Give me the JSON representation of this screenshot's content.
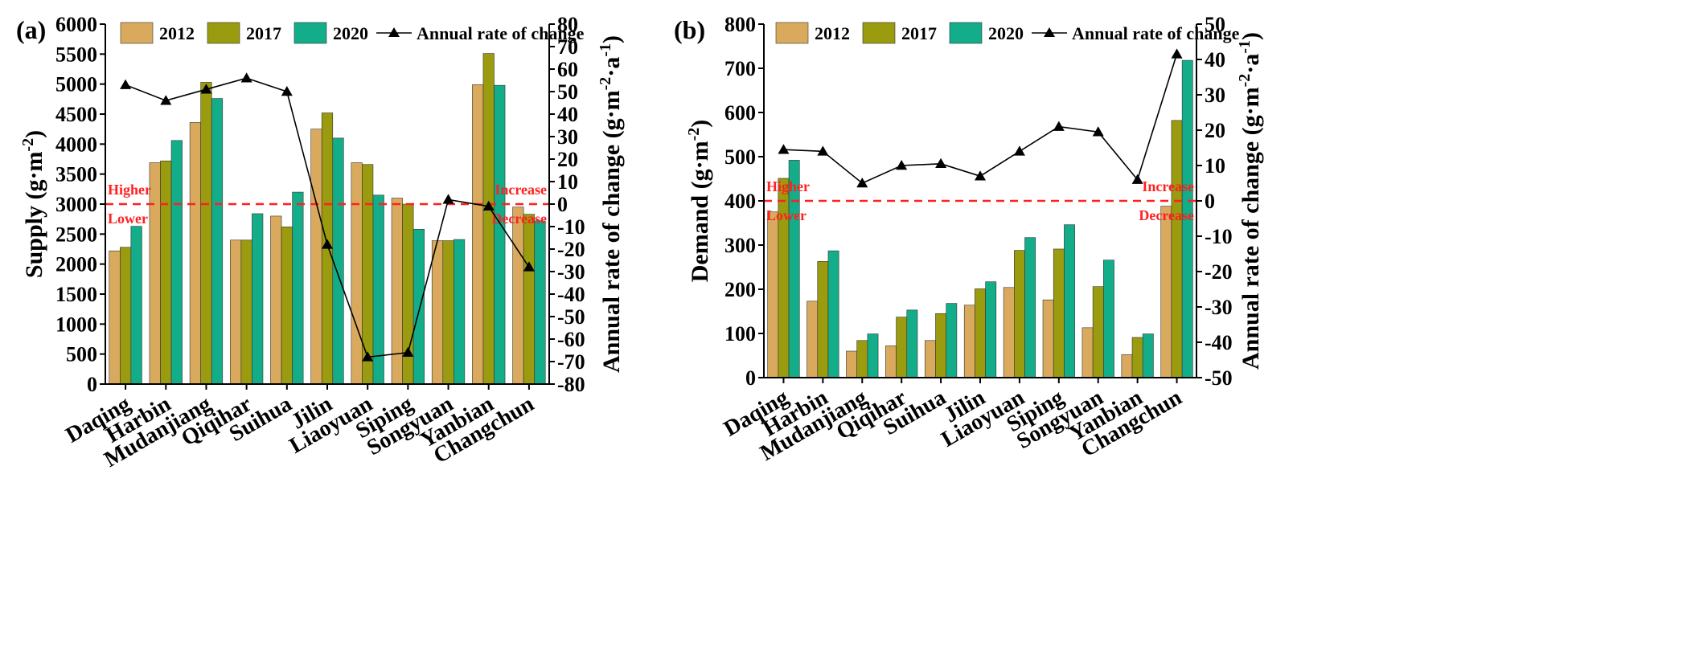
{
  "colors": {
    "c2012": "#d9aa5e",
    "c2017": "#9a9b0e",
    "c2020": "#13ad8a",
    "rate": "#000000",
    "threshold": "#ff2020"
  },
  "legend": {
    "y2012": "2012",
    "y2017": "2017",
    "y2020": "2020",
    "rate": "Annual rate of change"
  },
  "chart_data": [
    {
      "type": "bar",
      "panel_label": "(a)",
      "ylabel": "Supply (g·m",
      "ylabel_sup": "-2",
      "ylabel_close": ")",
      "y2label": "Annual rate of change (g·m",
      "y2label_sup": "-2",
      "y2label_mid": "·a",
      "y2label_sup2": "-1",
      "y2label_close": ")",
      "ylim": [
        0,
        6000
      ],
      "y_ticks": [
        0,
        500,
        1000,
        1500,
        2000,
        2500,
        3000,
        3500,
        4000,
        4500,
        5000,
        5500,
        6000
      ],
      "y2lim": [
        -80,
        80
      ],
      "y2_ticks": [
        -80,
        -70,
        -60,
        -50,
        -40,
        -30,
        -20,
        -10,
        0,
        10,
        20,
        30,
        40,
        50,
        60,
        70,
        80
      ],
      "categories": [
        "Daqing",
        "Harbin",
        "Mudanjiang",
        "Qiqihar",
        "Suihua",
        "Jilin",
        "Liaoyuan",
        "Siping",
        "Songyuan",
        "Yanbian",
        "Changchun"
      ],
      "series": [
        {
          "name": "2012",
          "values": [
            2220,
            3690,
            4360,
            2400,
            2800,
            4250,
            3690,
            3100,
            2390,
            4990,
            2950
          ]
        },
        {
          "name": "2017",
          "values": [
            2280,
            3720,
            5030,
            2400,
            2620,
            4520,
            3660,
            3000,
            2390,
            5510,
            2830
          ]
        },
        {
          "name": "2020",
          "values": [
            2630,
            4060,
            4760,
            2840,
            3200,
            4100,
            3150,
            2580,
            2410,
            4980,
            2720
          ]
        }
      ],
      "rate_series": {
        "name": "Annual rate of change",
        "values": [
          53,
          46,
          51,
          56,
          50,
          -18,
          -68,
          -66,
          2,
          -1,
          -28
        ]
      },
      "threshold": {
        "value": 3000,
        "upper_left": "Higher",
        "lower_left": "Lower",
        "upper_right": "Increase",
        "lower_right": "Decrease"
      }
    },
    {
      "type": "bar",
      "panel_label": "(b)",
      "ylabel": "Demand (g·m",
      "ylabel_sup": "-2",
      "ylabel_close": ")",
      "y2label": "Annual rate of change (g·m",
      "y2label_sup": "-2",
      "y2label_mid": "·a",
      "y2label_sup2": "-1",
      "y2label_close": ")",
      "ylim": [
        0,
        800
      ],
      "y_ticks": [
        0,
        100,
        200,
        300,
        400,
        500,
        600,
        700,
        800
      ],
      "y2lim": [
        -50,
        50
      ],
      "y2_ticks": [
        -50,
        -40,
        -30,
        -20,
        -10,
        0,
        10,
        20,
        30,
        40,
        50
      ],
      "categories": [
        "Daqing",
        "Harbin",
        "Mudanjiang",
        "Qiqihar",
        "Suihua",
        "Jilin",
        "Liaoyuan",
        "Siping",
        "Songyuan",
        "Yanbian",
        "Changchun"
      ],
      "series": [
        {
          "name": "2012",
          "values": [
            375,
            173,
            60,
            72,
            84,
            164,
            204,
            176,
            113,
            52,
            388
          ]
        },
        {
          "name": "2017",
          "values": [
            451,
            263,
            84,
            137,
            145,
            201,
            288,
            291,
            206,
            91,
            582
          ]
        },
        {
          "name": "2020",
          "values": [
            492,
            287,
            99,
            153,
            168,
            217,
            317,
            346,
            266,
            99,
            718
          ]
        }
      ],
      "rate_series": {
        "name": "Annual rate of change",
        "values": [
          14.5,
          14,
          5,
          10,
          10.5,
          7,
          14,
          21,
          19.5,
          6,
          41.5
        ]
      },
      "threshold": {
        "value": 400,
        "upper_left": "Higher",
        "lower_left": "Lower",
        "upper_right": "Increase",
        "lower_right": "Decrease"
      }
    }
  ]
}
